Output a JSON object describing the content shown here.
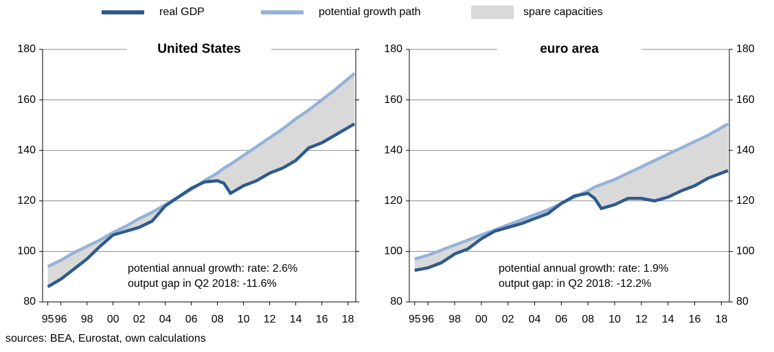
{
  "legend_fill": {
    "name": "spare capacities",
    "color": "#d9d9d9"
  },
  "source": "sources: BEA, Eurostat, own calculations",
  "chart_data": [
    {
      "type": "line",
      "title": "United States",
      "x": [
        1995,
        1996,
        1997,
        1998,
        1999,
        2000,
        2001,
        2002,
        2003,
        2004,
        2005,
        2006,
        2007,
        2008,
        2008.5,
        2009,
        2010,
        2011,
        2012,
        2013,
        2014,
        2015,
        2016,
        2017,
        2018.5
      ],
      "series": [
        {
          "name": "real GDP",
          "color": "#2e5a8c",
          "values": [
            86,
            89,
            93,
            97,
            102,
            106.5,
            108,
            109.5,
            112,
            118,
            121.5,
            125,
            127.5,
            128,
            127,
            123,
            126,
            128,
            131,
            133,
            136,
            141,
            143,
            146,
            150.5
          ]
        },
        {
          "name": "potential growth path",
          "color": "#95b3d7",
          "values": [
            94,
            96.5,
            99.5,
            102,
            104.5,
            107.5,
            110,
            113,
            115.5,
            118.5,
            121.5,
            124.5,
            128,
            131,
            133,
            134.5,
            138,
            141.5,
            145,
            148.5,
            152.5,
            156,
            160,
            164,
            170.5
          ]
        }
      ],
      "annotations": [
        "potential annual growth: rate: 2.6%",
        "output gap in Q2 2018:  -11.6%"
      ],
      "xlim": [
        1994.6,
        2018.6
      ],
      "xticks": [
        {
          "value": 1995,
          "label": "95"
        },
        {
          "value": 1996,
          "label": "96"
        },
        {
          "value": 1998,
          "label": "98"
        },
        {
          "value": 2000,
          "label": "00"
        },
        {
          "value": 2002,
          "label": "02"
        },
        {
          "value": 2004,
          "label": "04"
        },
        {
          "value": 2006,
          "label": "06"
        },
        {
          "value": 2008,
          "label": "08"
        },
        {
          "value": 2010,
          "label": "10"
        },
        {
          "value": 2012,
          "label": "12"
        },
        {
          "value": 2014,
          "label": "14"
        },
        {
          "value": 2016,
          "label": "16"
        },
        {
          "value": 2018,
          "label": "18"
        }
      ],
      "ylim": [
        80,
        180
      ],
      "yticks": [
        80,
        100,
        120,
        140,
        160,
        180
      ],
      "grid": true
    },
    {
      "type": "line",
      "title": "euro area",
      "x": [
        1995,
        1996,
        1997,
        1998,
        1999,
        2000,
        2001,
        2002,
        2003,
        2004,
        2005,
        2006,
        2007,
        2008,
        2008.5,
        2009,
        2010,
        2011,
        2012,
        2013,
        2014,
        2015,
        2016,
        2017,
        2018.5
      ],
      "series": [
        {
          "name": "real GDP",
          "color": "#2e5a8c",
          "values": [
            92.5,
            93.5,
            95.5,
            99,
            101,
            105,
            108,
            109.5,
            111,
            113,
            115,
            119,
            122,
            123,
            121,
            117,
            118.5,
            121,
            121,
            120,
            121.5,
            124,
            126,
            129,
            132
          ]
        },
        {
          "name": "potential growth path",
          "color": "#95b3d7",
          "values": [
            97,
            98.5,
            100.5,
            102.5,
            104.5,
            106.5,
            108.5,
            110.5,
            112.5,
            114.5,
            116.5,
            119,
            121.5,
            124,
            125.5,
            126.5,
            128.5,
            131,
            133.5,
            136,
            138.5,
            141,
            143.5,
            146,
            150.5
          ]
        }
      ],
      "annotations": [
        "potential annual growth: rate: 1.9%",
        "output gap: in Q2 2018:  -12.2%"
      ],
      "xlim": [
        1994.6,
        2018.6
      ],
      "xticks": [
        {
          "value": 1995,
          "label": "95"
        },
        {
          "value": 1996,
          "label": "96"
        },
        {
          "value": 1998,
          "label": "98"
        },
        {
          "value": 2000,
          "label": "00"
        },
        {
          "value": 2002,
          "label": "02"
        },
        {
          "value": 2004,
          "label": "04"
        },
        {
          "value": 2006,
          "label": "06"
        },
        {
          "value": 2008,
          "label": "08"
        },
        {
          "value": 2010,
          "label": "10"
        },
        {
          "value": 2012,
          "label": "12"
        },
        {
          "value": 2014,
          "label": "14"
        },
        {
          "value": 2016,
          "label": "16"
        },
        {
          "value": 2018,
          "label": "18"
        }
      ],
      "ylim": [
        80,
        180
      ],
      "yticks": [
        80,
        100,
        120,
        140,
        160,
        180
      ],
      "grid": true
    }
  ]
}
